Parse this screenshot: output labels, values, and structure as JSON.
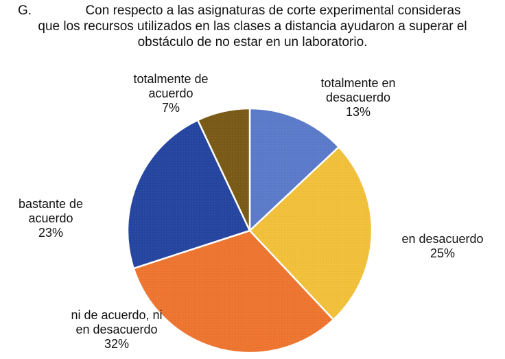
{
  "title": {
    "letter": "G.",
    "lines": [
      "Con respecto a las asignaturas de corte experimental consideras",
      "que los recursos utilizados en las clases a distancia ayudaron a superar el",
      "obstáculo de no estar en un laboratorio."
    ]
  },
  "chart_data": {
    "type": "pie",
    "title": "Con respecto a las asignaturas de corte experimental consideras que los recursos utilizados en las clases a distancia ayudaron a superar el obstáculo de no estar en un laboratorio.",
    "legend": "none",
    "slices": [
      {
        "label_lines": [
          "totalmente en",
          "desacuerdo"
        ],
        "label": "totalmente en desacuerdo",
        "value": 13,
        "value_label": "13%",
        "color": "#5b7ac9"
      },
      {
        "label_lines": [
          "en desacuerdo"
        ],
        "label": "en desacuerdo",
        "value": 25,
        "value_label": "25%",
        "color": "#f2c13a"
      },
      {
        "label_lines": [
          "ni de acuerdo, ni",
          "en desacuerdo"
        ],
        "label": "ni de acuerdo, ni en desacuerdo",
        "value": 32,
        "value_label": "32%",
        "color": "#ee7530"
      },
      {
        "label_lines": [
          "bastante de",
          "acuerdo"
        ],
        "label": "bastante de acuerdo",
        "value": 23,
        "value_label": "23%",
        "color": "#2545a0"
      },
      {
        "label_lines": [
          "totalmente de",
          "acuerdo"
        ],
        "label": "totalmente de acuerdo",
        "value": 7,
        "value_label": "7%",
        "color": "#7a5a16"
      }
    ]
  }
}
